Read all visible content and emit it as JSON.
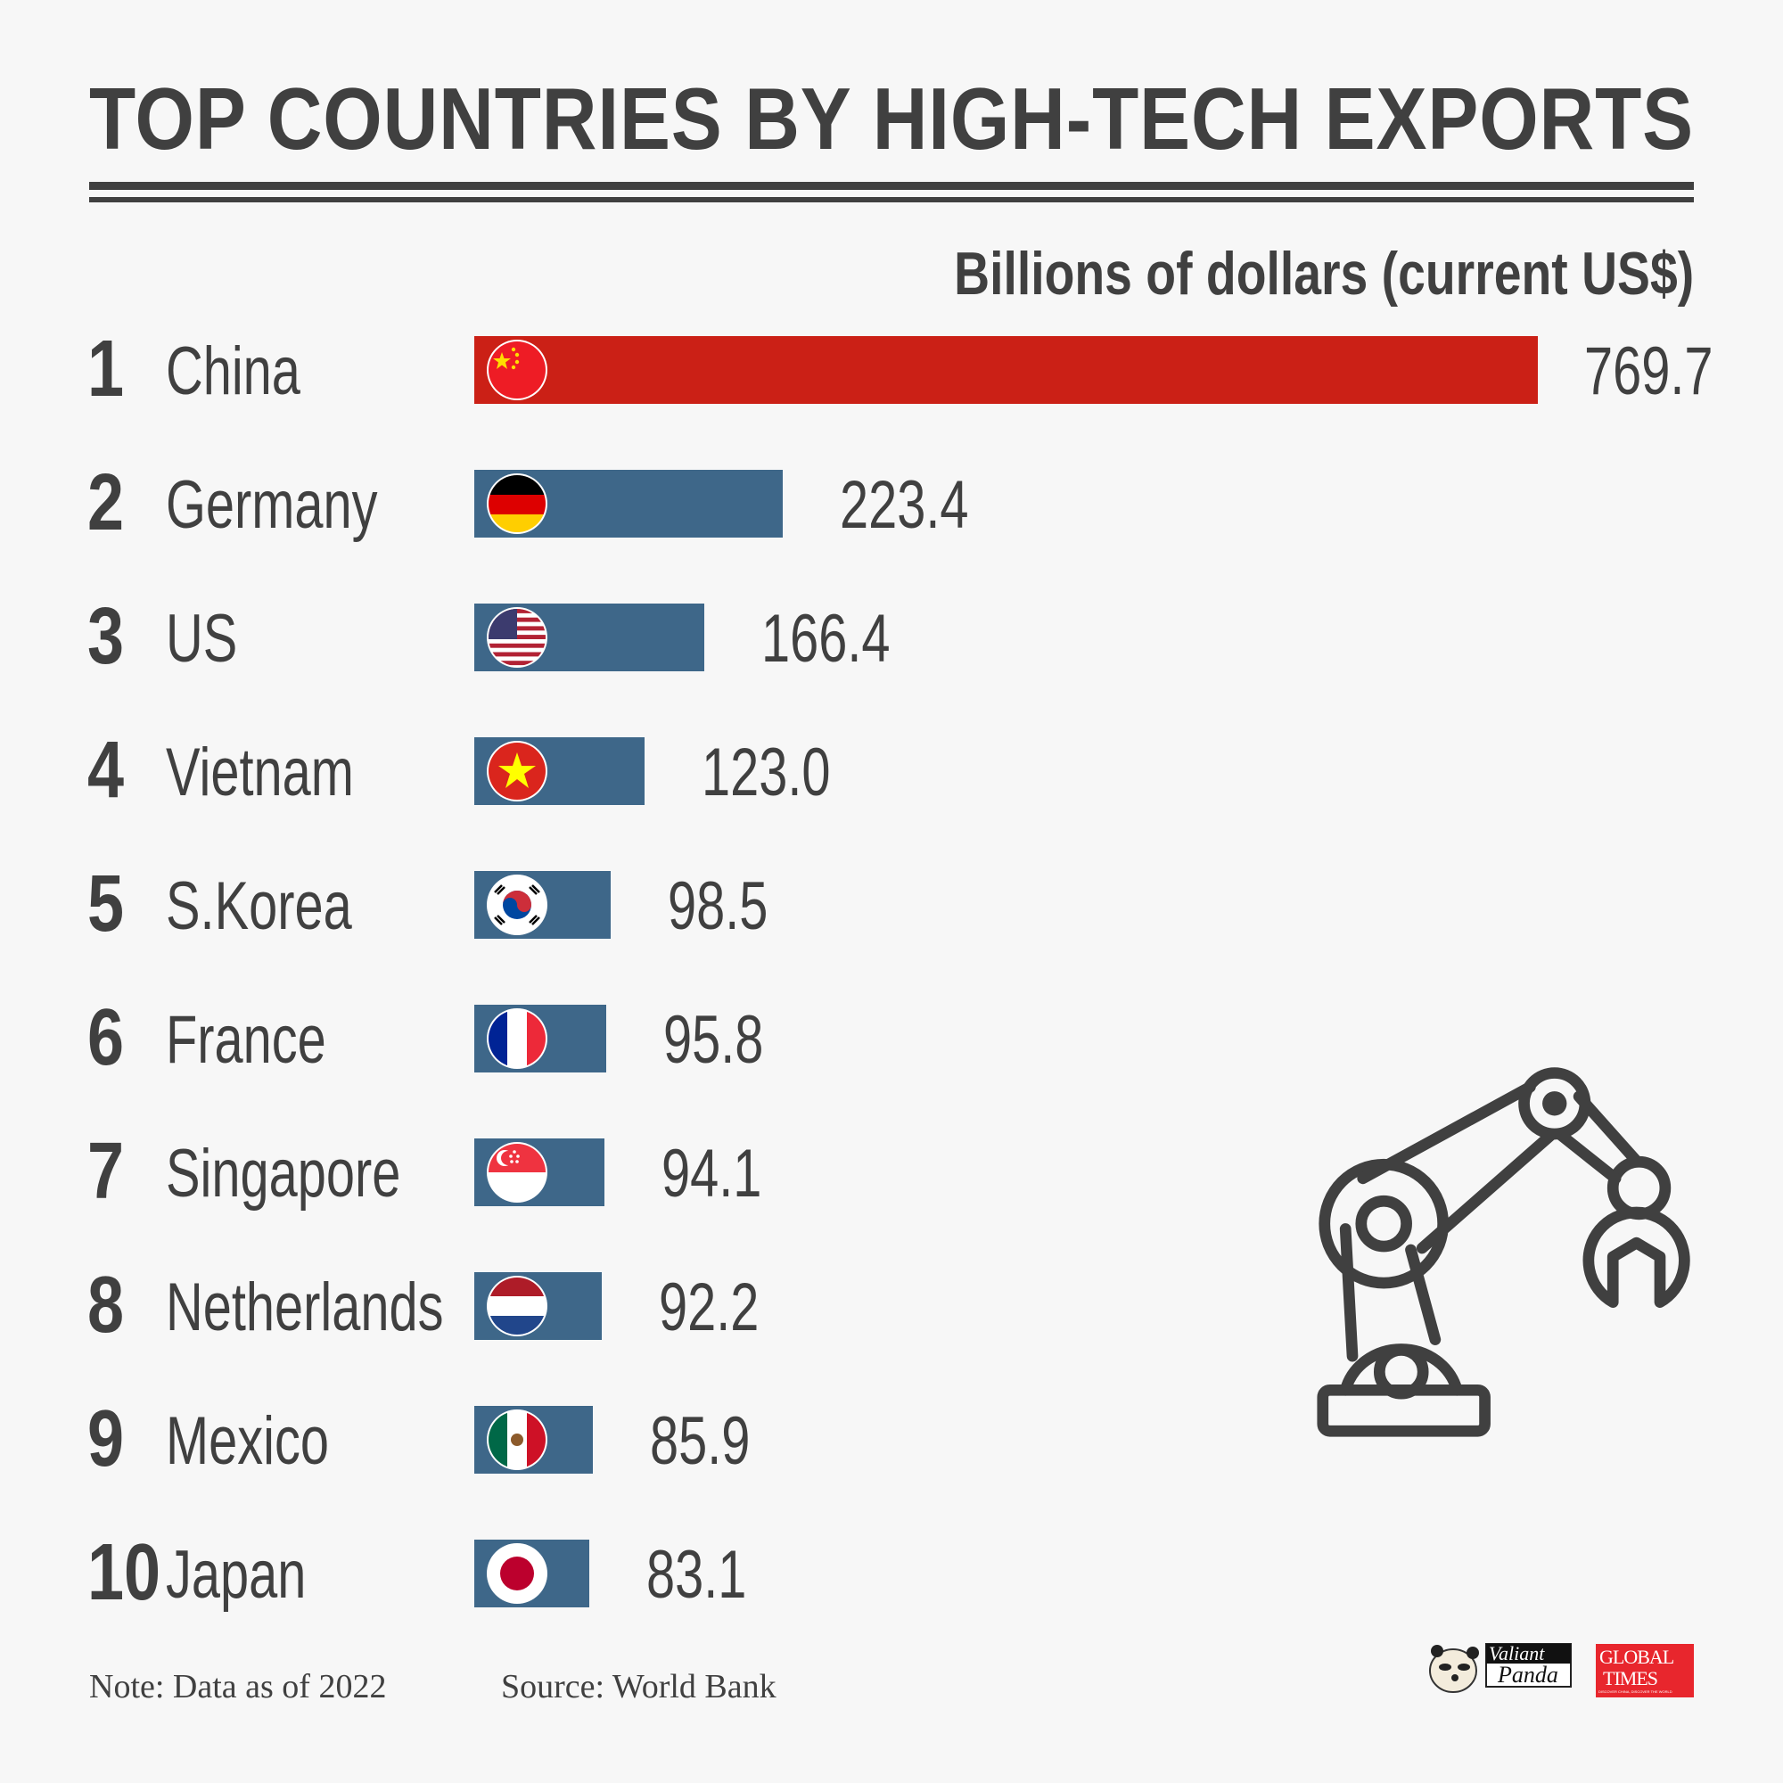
{
  "chart_data": {
    "type": "bar",
    "orientation": "horizontal",
    "title": "TOP COUNTRIES BY HIGH-TECH EXPORTS",
    "unit_label": "Billions of dollars (current US$)",
    "ranks": [
      "1",
      "2",
      "3",
      "4",
      "5",
      "6",
      "7",
      "8",
      "9",
      "10"
    ],
    "categories": [
      "China",
      "Germany",
      "US",
      "Vietnam",
      "S.Korea",
      "France",
      "Singapore",
      "Netherlands",
      "Mexico",
      "Japan"
    ],
    "values": [
      769.7,
      223.4,
      166.4,
      123.0,
      98.5,
      95.8,
      94.1,
      92.2,
      85.9,
      83.1
    ],
    "value_labels": [
      "769.7",
      "223.4",
      "166.4",
      "123.0",
      "98.5",
      "95.8",
      "94.1",
      "92.2",
      "85.9",
      "83.1"
    ],
    "flags": [
      "china-flag-icon",
      "germany-flag-icon",
      "us-flag-icon",
      "vietnam-flag-icon",
      "south-korea-flag-icon",
      "france-flag-icon",
      "singapore-flag-icon",
      "netherlands-flag-icon",
      "mexico-flag-icon",
      "japan-flag-icon"
    ],
    "highlight_color": "#cb2016",
    "bar_color": "#3e6789",
    "xlim": [
      0,
      769.7
    ]
  },
  "footer": {
    "note": "Note: Data as of 2022",
    "source": "Source: World Bank"
  },
  "logos": {
    "valiant_panda_line1": "Valiant",
    "valiant_panda_line2": "Panda",
    "global_times_line1": "GLOBAL",
    "global_times_line2": "TIMES",
    "global_times_tagline": "DISCOVER CHINA, DISCOVER THE WORLD"
  },
  "decoration": {
    "icon": "robot-arm-icon"
  }
}
